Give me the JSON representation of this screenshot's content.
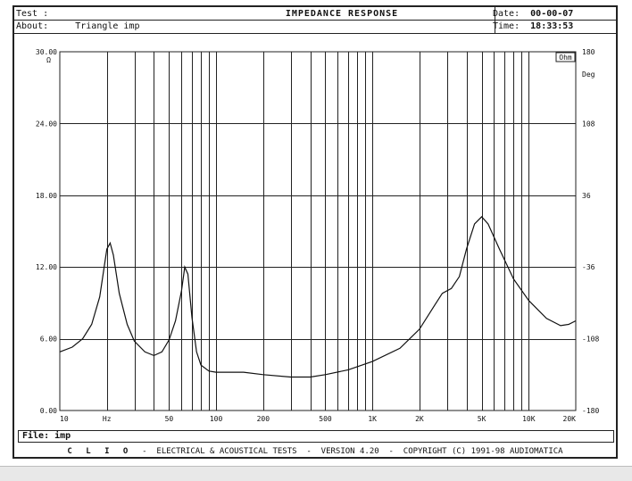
{
  "header": {
    "test_label": "Test :",
    "about_label": "About:",
    "about_value": "Triangle imp",
    "title": "IMPEDANCE RESPONSE",
    "date_label": "Date:",
    "date_value": "00-00-07",
    "time_label": "Time:",
    "time_value": "18:33:53"
  },
  "file": {
    "label": "File:",
    "value": "imp"
  },
  "footer": {
    "brand": "C L I O",
    "product": "ELECTRICAL & ACOUSTICAL TESTS",
    "version": "VERSION 4.20",
    "copyright": "COPYRIGHT (C) 1991-98 AUDIOMATICA"
  },
  "chart_data": {
    "type": "line",
    "title": "IMPEDANCE RESPONSE",
    "xscale": "log",
    "xlim": [
      10,
      20000
    ],
    "ylim": [
      0,
      30
    ],
    "y2lim": [
      -180,
      180
    ],
    "grid": true,
    "y_left_ticks": [
      "30.00",
      "24.00",
      "18.00",
      "12.00",
      "6.00",
      "0.00"
    ],
    "y_left_unit": "Ω",
    "y_right_ticks": [
      "180",
      "108",
      "36",
      "-36",
      "-108",
      "-180"
    ],
    "y_right_unit": "Deg",
    "x_ticks": [
      {
        "value": 10,
        "label": "10"
      },
      {
        "value": 20,
        "label": "Hz"
      },
      {
        "value": 50,
        "label": "50"
      },
      {
        "value": 100,
        "label": "100"
      },
      {
        "value": 200,
        "label": "200"
      },
      {
        "value": 500,
        "label": "500"
      },
      {
        "value": 1000,
        "label": "1K"
      },
      {
        "value": 2000,
        "label": "2K"
      },
      {
        "value": 5000,
        "label": "5K"
      },
      {
        "value": 10000,
        "label": "10K"
      },
      {
        "value": 20000,
        "label": "20K"
      }
    ],
    "corner_unit": "Ohm",
    "series": [
      {
        "points": [
          [
            10,
            4.9
          ],
          [
            12,
            5.3
          ],
          [
            14,
            6.0
          ],
          [
            16,
            7.2
          ],
          [
            18,
            9.5
          ],
          [
            20,
            13.5
          ],
          [
            21,
            14.0
          ],
          [
            22,
            13.0
          ],
          [
            24,
            9.8
          ],
          [
            27,
            7.2
          ],
          [
            30,
            5.8
          ],
          [
            35,
            4.9
          ],
          [
            40,
            4.6
          ],
          [
            45,
            4.9
          ],
          [
            50,
            5.9
          ],
          [
            55,
            7.5
          ],
          [
            60,
            10.0
          ],
          [
            63,
            12.0
          ],
          [
            66,
            11.4
          ],
          [
            70,
            7.8
          ],
          [
            75,
            4.9
          ],
          [
            80,
            3.8
          ],
          [
            90,
            3.3
          ],
          [
            100,
            3.2
          ],
          [
            150,
            3.2
          ],
          [
            200,
            3.0
          ],
          [
            300,
            2.8
          ],
          [
            400,
            2.8
          ],
          [
            500,
            3.0
          ],
          [
            700,
            3.4
          ],
          [
            1000,
            4.1
          ],
          [
            1500,
            5.2
          ],
          [
            2000,
            6.8
          ],
          [
            2500,
            8.8
          ],
          [
            2800,
            9.8
          ],
          [
            3200,
            10.2
          ],
          [
            3600,
            11.2
          ],
          [
            4000,
            13.5
          ],
          [
            4500,
            15.6
          ],
          [
            5000,
            16.2
          ],
          [
            5500,
            15.6
          ],
          [
            6500,
            13.5
          ],
          [
            8000,
            11.0
          ],
          [
            10000,
            9.2
          ],
          [
            13000,
            7.7
          ],
          [
            16000,
            7.1
          ],
          [
            18000,
            7.2
          ],
          [
            20000,
            7.5
          ]
        ]
      }
    ]
  }
}
